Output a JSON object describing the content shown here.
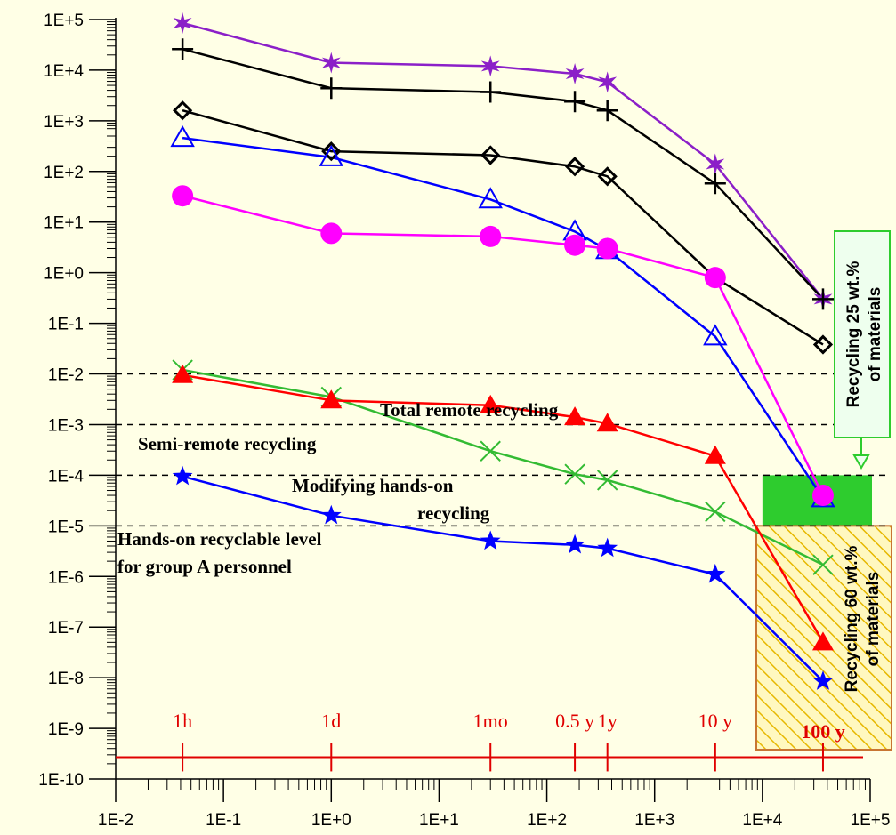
{
  "chart_data": {
    "type": "line",
    "xscale": "log",
    "yscale": "log",
    "xlim": [
      0.01,
      100000
    ],
    "ylim": [
      1e-10,
      100000
    ],
    "x_tick_labels": [
      "1E-2",
      "1E-1",
      "1E+0",
      "1E+1",
      "1E+2",
      "1E+3",
      "1E+4",
      "1E+5"
    ],
    "y_tick_labels": [
      "1E-10",
      "1E-9",
      "1E-8",
      "1E-7",
      "1E-6",
      "1E-5",
      "1E-4",
      "1E-3",
      "1E-2",
      "1E-1",
      "1E+0",
      "1E+1",
      "1E+2",
      "1E+3",
      "1E+4",
      "1E+5"
    ],
    "x": [
      0.0417,
      1,
      30,
      182,
      365,
      3650,
      36500
    ],
    "series": [
      {
        "marker": "star6",
        "color": "#8b1fc8",
        "values": [
          85000,
          14000,
          12000,
          8500,
          5800,
          140,
          0.3
        ]
      },
      {
        "marker": "plus",
        "color": "#000000",
        "values": [
          26000,
          4400,
          3700,
          2400,
          1600,
          58,
          0.3
        ]
      },
      {
        "marker": "diamond",
        "color": "#000000",
        "values": [
          1600,
          250,
          210,
          125,
          80,
          0.8,
          0.038
        ]
      },
      {
        "marker": "triangle-open",
        "color": "#0000ff",
        "values": [
          460,
          190,
          28,
          6.5,
          2.8,
          0.055,
          3.5e-05
        ]
      },
      {
        "marker": "circle",
        "color": "#ff00ff",
        "values": [
          33,
          6,
          5.2,
          3.5,
          3,
          0.8,
          4e-05
        ]
      },
      {
        "marker": "x",
        "color": "#33bb33",
        "values": [
          0.012,
          0.0035,
          0.0003,
          0.000105,
          8e-05,
          1.9e-05,
          1.7e-06
        ]
      },
      {
        "marker": "triangle-filled",
        "color": "#ff0000",
        "values": [
          0.0095,
          0.003,
          0.0024,
          0.0014,
          0.00105,
          0.00024,
          5e-08
        ]
      },
      {
        "marker": "star5",
        "color": "#0000ff",
        "values": [
          9.5e-05,
          1.6e-05,
          5e-06,
          4.2e-06,
          3.6e-06,
          1.1e-06,
          8.5e-09
        ]
      }
    ],
    "reference_lines": [
      0.01,
      0.001,
      0.0001,
      1e-05
    ],
    "time_axis": {
      "y": 2.7e-10,
      "markers": [
        {
          "label": "1h",
          "x": 0.0417
        },
        {
          "label": "1d",
          "x": 1
        },
        {
          "label": "1mo",
          "x": 30
        },
        {
          "label": "0.5 y",
          "x": 182
        },
        {
          "label": "1y",
          "x": 365
        },
        {
          "label": "10 y",
          "x": 3650
        },
        {
          "label": "100 y",
          "x": 36500
        }
      ]
    },
    "annotations": [
      {
        "text": "Total remote recycling"
      },
      {
        "text": "Semi-remote recycling"
      },
      {
        "text": "Modifying hands-on"
      },
      {
        "text": "recycling"
      },
      {
        "text": "Hands-on recyclable level"
      },
      {
        "text": "for group A personnel"
      }
    ],
    "boxes": [
      {
        "line1": "Recycling 25 wt.%",
        "line2": "of materials",
        "color": "#2ecc2e"
      },
      {
        "line1": "Recycling 60 wt.%",
        "line2": "of materials",
        "color": "#f5c842"
      }
    ]
  }
}
